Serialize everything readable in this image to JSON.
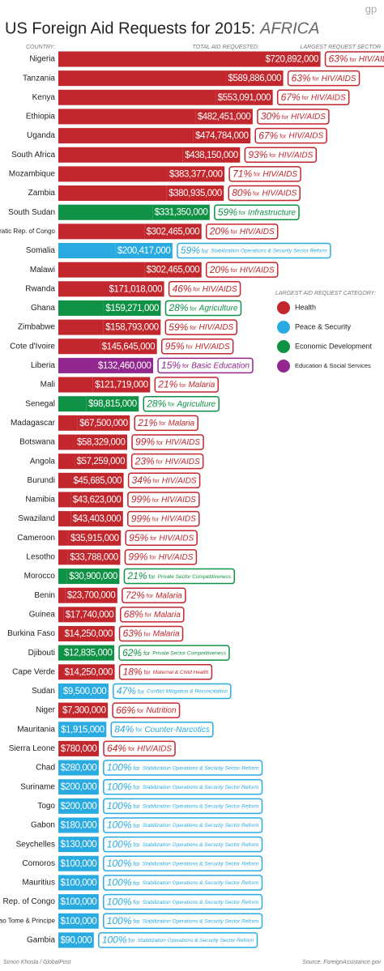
{
  "chart_data": {
    "type": "bar",
    "title": "US Foreign Aid Requests for 2015:",
    "title_region": "AFRICA",
    "logo": "gp",
    "category_header": "COUNTRY:",
    "value_header": "TOTAL AID REQUESTED:",
    "sector_header": "LARGEST REQUEST SECTOR",
    "legend_title": "LARGEST AID REQUEST CATEGORY:",
    "legend": [
      {
        "name": "Health",
        "color": "#c1272d"
      },
      {
        "name": "Peace & Security",
        "color": "#29abe2"
      },
      {
        "name": "Economic Development",
        "color": "#0f9246"
      },
      {
        "name": "Education & Social Services",
        "color": "#92278f"
      }
    ],
    "categories": [
      "Nigeria",
      "Tanzania",
      "Kenya",
      "Ethiopia",
      "Uganda",
      "South Africa",
      "Mozambique",
      "Zambia",
      "South Sudan",
      "Democratic Rep. of Congo",
      "Somalia",
      "Malawi",
      "Rwanda",
      "Ghana",
      "Zimbabwe",
      "Cote d'Ivoire",
      "Liberia",
      "Mali",
      "Senegal",
      "Madagascar",
      "Botswana",
      "Angola",
      "Burundi",
      "Namibia",
      "Swaziland",
      "Cameroon",
      "Lesotho",
      "Morocco",
      "Benin",
      "Guinea",
      "Burkina Faso",
      "Djibouti",
      "Cape Verde",
      "Sudan",
      "Niger",
      "Mauritania",
      "Sierra Leone",
      "Chad",
      "Suriname",
      "Togo",
      "Gabon",
      "Seychelles",
      "Comoros",
      "Mauritius",
      "Rep. of Congo",
      "Sao Tome & Principe",
      "Gambia"
    ],
    "values": [
      720892000,
      589886000,
      553091000,
      482451000,
      474784000,
      438150000,
      383377000,
      380935000,
      331350000,
      302465000,
      200417000,
      302465000,
      171018000,
      159271000,
      158793000,
      145645000,
      132460000,
      121719000,
      98815000,
      67500000,
      58329000,
      57259000,
      45685000,
      43623000,
      43403000,
      35915000,
      33788000,
      30900000,
      23700000,
      17740000,
      14250000,
      12835000,
      14250000,
      9500000,
      7300000,
      1915000,
      780000,
      280000,
      200000,
      200000,
      180000,
      130000,
      100000,
      100000,
      100000,
      100000,
      90000
    ],
    "value_labels": [
      "$720,892,000",
      "$589,886,000",
      "$553,091,000",
      "$482,451,000",
      "$474,784,000",
      "$438,150,000",
      "$383,377,000",
      "$380,935,000",
      "$331,350,000",
      "$302,465,000",
      "$200,417,000",
      "$302,465,000",
      "$171,018,000",
      "$159,271,000",
      "$158,793,000",
      "$145,645,000",
      "$132,460,000",
      "$121,719,000",
      "$98,815,000",
      "$67,500,000",
      "$58,329,000",
      "$57,259,000",
      "$45,685,000",
      "$43,623,000",
      "$43,403,000",
      "$35,915,000",
      "$33,788,000",
      "$30,900,000",
      "$23,700,000",
      "$17,740,000",
      "$14,250,000",
      "$12,835,000",
      "$14,250,000",
      "$9,500,000",
      "$7,300,000",
      "$1,915,000",
      "$780,000",
      "$280,000",
      "$200,000",
      "$200,000",
      "$180,000",
      "$130,000",
      "$100,000",
      "$100,000",
      "$100,000",
      "$100,000",
      "$90,000"
    ],
    "aid_category": [
      0,
      0,
      0,
      0,
      0,
      0,
      0,
      0,
      2,
      0,
      1,
      0,
      0,
      2,
      0,
      0,
      3,
      0,
      2,
      0,
      0,
      0,
      0,
      0,
      0,
      0,
      0,
      2,
      0,
      0,
      0,
      2,
      0,
      1,
      0,
      1,
      0,
      1,
      1,
      1,
      1,
      1,
      1,
      1,
      1,
      1,
      1
    ],
    "shares": [
      63,
      63,
      67,
      30,
      67,
      93,
      71,
      80,
      59,
      20,
      59,
      20,
      46,
      28,
      59,
      95,
      15,
      21,
      28,
      21,
      99,
      23,
      34,
      99,
      99,
      95,
      99,
      21,
      72,
      68,
      63,
      62,
      18,
      47,
      66,
      84,
      64,
      100,
      100,
      100,
      100,
      100,
      100,
      100,
      100,
      100,
      100
    ],
    "share_labels": [
      "63%",
      "63%",
      "67%",
      "30%",
      "67%",
      "93%",
      "71%",
      "80%",
      "59%",
      "20%",
      "59%",
      "20%",
      "46%",
      "28%",
      "59%",
      "95%",
      "15%",
      "21%",
      "28%",
      "21%",
      "99%",
      "23%",
      "34%",
      "99%",
      "99%",
      "95%",
      "99%",
      "21%",
      "72%",
      "68%",
      "63%",
      "62%",
      "18%",
      "47%",
      "66%",
      "84%",
      "64%",
      "100%",
      "100%",
      "100%",
      "100%",
      "100%",
      "100%",
      "100%",
      "100%",
      "100%",
      "100%"
    ],
    "sector_connector": "for",
    "sectors": [
      "HIV/AIDS",
      "HIV/AIDS",
      "HIV/AIDS",
      "HIV/AIDS",
      "HIV/AIDS",
      "HIV/AIDS",
      "HIV/AIDS",
      "HIV/AIDS",
      "Infrastructure",
      "HIV/AIDS",
      "Stabilization Operations & Security Sector Reform",
      "HIV/AIDS",
      "HIV/AIDS",
      "Agriculture",
      "HIV/AIDS",
      "HIV/AIDS",
      "Basic Education",
      "Malaria",
      "Agriculture",
      "Malaria",
      "HIV/AIDS",
      "HIV/AIDS",
      "HIV/AIDS",
      "HIV/AIDS",
      "HIV/AIDS",
      "HIV/AIDS",
      "HIV/AIDS",
      "Private Sector Competitiveness",
      "Malaria",
      "Malaria",
      "Malaria",
      "Private Sector Competitiveness",
      "Maternal & Child Health",
      "Conflict Mitigation & Reconciliation",
      "Nutrition",
      "Counter-Narcotics",
      "HIV/AIDS",
      "Stabilization Operations & Security Sector Reform",
      "Stabilization Operations & Security Sector Reform",
      "Stabilization Operations & Security Sector Reform",
      "Stabilization Operations & Security Sector Reform",
      "Stabilization Operations & Security Sector Reform",
      "Stabilization Operations & Security Sector Reform",
      "Stabilization Operations & Security Sector Reform",
      "Stabilization Operations & Security Sector Reform",
      "Stabilization Operations & Security Sector Reform",
      "Stabilization Operations & Security Sector Reform"
    ],
    "credit": "Simon Khosla / GlobalPost",
    "source": "Source: ForeignAssistance.gov"
  }
}
